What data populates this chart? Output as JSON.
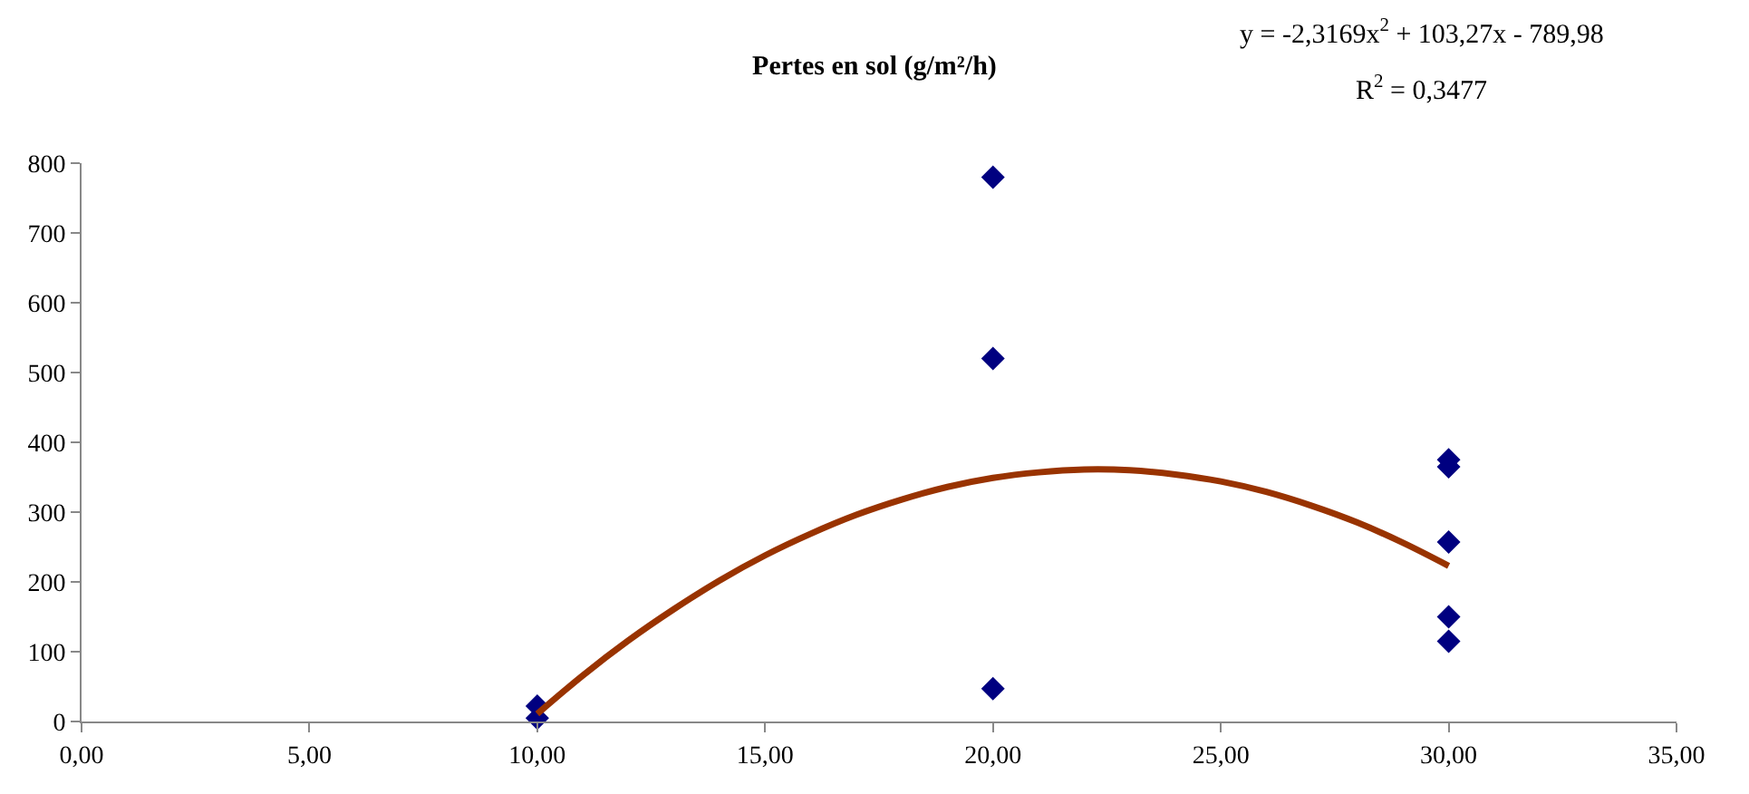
{
  "chart_data": {
    "type": "scatter",
    "title": "Pertes en sol (g/m²/h)",
    "series": [
      {
        "color": "#000080",
        "marker": "diamond",
        "x": [
          10,
          10,
          20,
          20,
          20,
          30,
          30,
          30,
          30,
          30
        ],
        "values": [
          22,
          5,
          780,
          520,
          47,
          375,
          365,
          257,
          150,
          115
        ]
      },
      {
        "type": "line",
        "color": "#993300",
        "marker": "none",
        "x": [
          10,
          11,
          12,
          13,
          14,
          15,
          16,
          17,
          18,
          19,
          20,
          21,
          22,
          23,
          24,
          25,
          26,
          27,
          28,
          29,
          30
        ],
        "values": [
          11,
          66,
          116,
          161,
          202,
          238,
          269,
          296,
          318,
          336,
          349,
          357,
          361,
          360,
          354,
          344,
          329,
          309,
          285,
          256,
          223
        ]
      }
    ],
    "xlim": [
      0,
      35
    ],
    "xticks": [
      {
        "value": 0,
        "label": "0,00"
      },
      {
        "value": 5,
        "label": "5,00"
      },
      {
        "value": 10,
        "label": "10,00"
      },
      {
        "value": 15,
        "label": "15,00"
      },
      {
        "value": 20,
        "label": "20,00"
      },
      {
        "value": 25,
        "label": "25,00"
      },
      {
        "value": 30,
        "label": "30,00"
      },
      {
        "value": 35,
        "label": "35,00"
      }
    ],
    "ylim": [
      0,
      800
    ],
    "yticks": [
      0,
      100,
      200,
      300,
      400,
      500,
      600,
      700,
      800
    ],
    "grid": false,
    "annotations": [
      "y = -2,3169x$^{2}$ + 103,27x - 789,98",
      "R$^{2}$ = 0,3477"
    ]
  }
}
